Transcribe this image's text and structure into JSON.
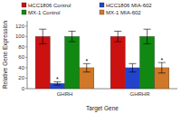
{
  "chart_data": {
    "type": "bar",
    "xlabel": "Target Gene",
    "ylabel": "Relative Gene Expression",
    "categories": [
      "GHRH",
      "GHRHR"
    ],
    "series": [
      {
        "name": "HCC1806 Control",
        "color": "#cc1111",
        "values": [
          100,
          100
        ],
        "errors": [
          14,
          10
        ]
      },
      {
        "name": "HCC1806 MIA-602",
        "color": "#2244cc",
        "values": [
          10,
          40
        ],
        "errors": [
          3,
          8
        ]
      },
      {
        "name": "MX-1 Control",
        "color": "#118811",
        "values": [
          100,
          100
        ],
        "errors": [
          10,
          14
        ]
      },
      {
        "name": "MX-1 MIA-602",
        "color": "#d07828",
        "values": [
          40,
          40
        ],
        "errors": [
          8,
          10
        ]
      }
    ],
    "annotations": [
      {
        "text": "*",
        "series": 1,
        "category": 0
      },
      {
        "text": "*",
        "series": 3,
        "category": 0
      },
      {
        "text": "*",
        "series": 3,
        "category": 1
      }
    ],
    "ylim": [
      0,
      130
    ],
    "yticks": [
      0,
      20,
      40,
      60,
      80,
      100,
      120
    ],
    "grid": false
  }
}
